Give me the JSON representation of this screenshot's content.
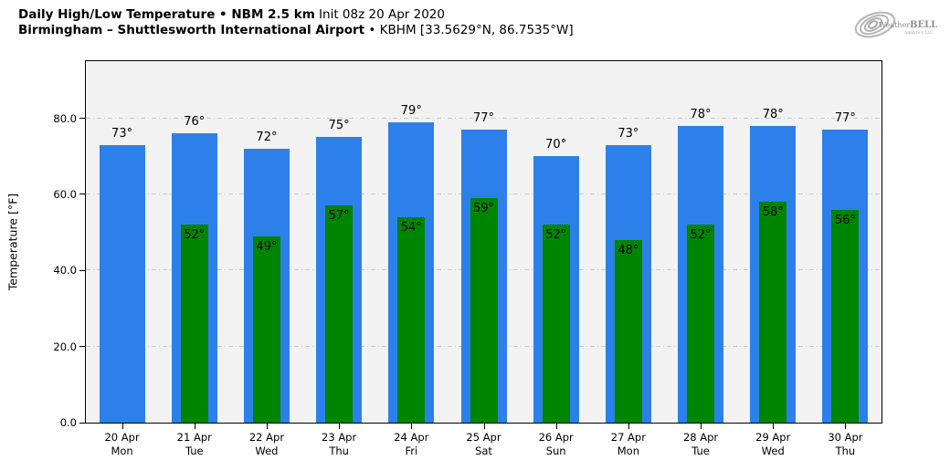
{
  "header": {
    "title_bold_1": "Daily High/Low Temperature • NBM 2.5 km",
    "title_rest_1": " Init 08z 20 Apr 2020",
    "title_bold_2": "Birmingham – Shuttlesworth International Airport",
    "title_rest_2": " • KBHM [33.5629°N, 86.7535°W]",
    "logo": {
      "brand_prefix": "Weather",
      "brand_suffix": "BELL",
      "brand_sub": "Analytics LLC",
      "color": "#9a9a9a"
    }
  },
  "chart_data": {
    "type": "bar",
    "title": "Daily High/Low Temperature • NBM 2.5 km Init 08z 20 Apr 2020",
    "subtitle": "Birmingham – Shuttlesworth International Airport • KBHM [33.5629°N, 86.7535°W]",
    "xlabel": "",
    "ylabel": "Temperature [°F]",
    "ylim": [
      0,
      95
    ],
    "yticks": [
      0,
      20,
      40,
      60,
      80
    ],
    "ytick_labels": [
      "0.0",
      "20.0",
      "40.0",
      "60.0",
      "80.0"
    ],
    "grid": "horizontal dash-dot at yticks",
    "legend": "none",
    "plot_background": "#f2f2f2",
    "categories": [
      {
        "date": "20 Apr",
        "day": "Mon"
      },
      {
        "date": "21 Apr",
        "day": "Tue"
      },
      {
        "date": "22 Apr",
        "day": "Wed"
      },
      {
        "date": "23 Apr",
        "day": "Thu"
      },
      {
        "date": "24 Apr",
        "day": "Fri"
      },
      {
        "date": "25 Apr",
        "day": "Sat"
      },
      {
        "date": "26 Apr",
        "day": "Sun"
      },
      {
        "date": "27 Apr",
        "day": "Mon"
      },
      {
        "date": "28 Apr",
        "day": "Tue"
      },
      {
        "date": "29 Apr",
        "day": "Wed"
      },
      {
        "date": "30 Apr",
        "day": "Thu"
      }
    ],
    "series": [
      {
        "name": "Daily High",
        "color": "#2d80e9",
        "values": [
          73,
          76,
          72,
          75,
          79,
          77,
          70,
          73,
          78,
          78,
          77
        ],
        "labels": [
          "73°",
          "76°",
          "72°",
          "75°",
          "79°",
          "77°",
          "70°",
          "73°",
          "78°",
          "78°",
          "77°"
        ]
      },
      {
        "name": "Daily Low",
        "color": "#008500",
        "values": [
          null,
          52,
          49,
          57,
          54,
          59,
          52,
          48,
          52,
          58,
          56
        ],
        "labels": [
          null,
          "52°",
          "49°",
          "57°",
          "54°",
          "59°",
          "52°",
          "48°",
          "52°",
          "58°",
          "56°"
        ]
      }
    ]
  }
}
